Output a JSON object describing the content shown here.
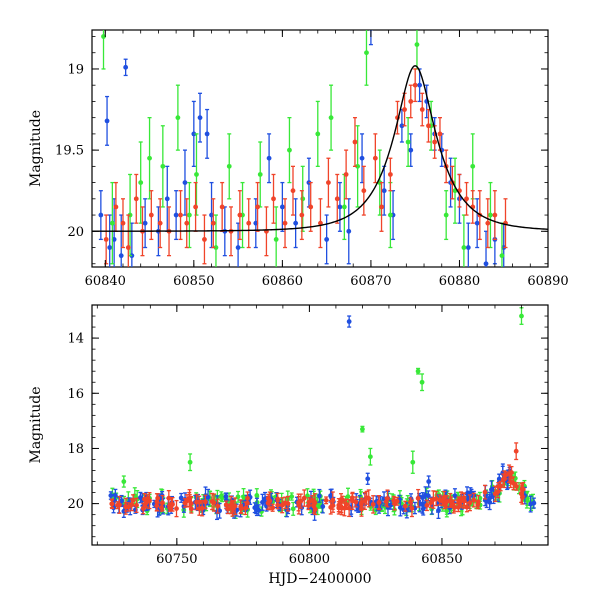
{
  "figure": {
    "xlabel": "HJD−2400000",
    "colors": {
      "blue": "#1f4fe0",
      "green": "#38e838",
      "red": "#f0442a",
      "model": "#000000"
    }
  },
  "chart_data": [
    {
      "type": "scatter",
      "panel": "top",
      "title": "",
      "xlabel": "",
      "ylabel": "Magnitude",
      "xlim": [
        60838.5,
        60890
      ],
      "ylim": [
        20.22,
        18.76
      ],
      "y_inverted": true,
      "xticks": [
        60840,
        60850,
        60860,
        60870,
        60880,
        60890
      ],
      "xtick_labels": [
        "60840",
        "60850",
        "60860",
        "60870",
        "60880",
        "60890"
      ],
      "yticks": [
        19,
        19.5,
        20
      ],
      "ytick_labels": [
        "19",
        "19.5",
        "20"
      ],
      "grid": false,
      "series": [
        {
          "color": "#1f4fe0",
          "points": [
            [
              60839.5,
              19.9,
              0.15
            ],
            [
              60840.2,
              19.32,
              0.15
            ],
            [
              60840.5,
              20.1,
              0.2
            ],
            [
              60841,
              20.05,
              0.25
            ],
            [
              60841.8,
              20.15,
              0.25
            ],
            [
              60842.3,
              18.99,
              0.05
            ],
            [
              60843,
              20.15,
              0.2
            ],
            [
              60844.5,
              19.95,
              0.15
            ],
            [
              60846,
              20.0,
              0.15
            ],
            [
              60847,
              19.8,
              0.2
            ],
            [
              60848,
              19.9,
              0.15
            ],
            [
              60849,
              19.7,
              0.2
            ],
            [
              60850,
              19.4,
              0.2
            ],
            [
              60850.7,
              19.3,
              0.15
            ],
            [
              60851.5,
              19.4,
              0.15
            ],
            [
              60852,
              19.9,
              0.2
            ],
            [
              60853.5,
              20.0,
              0.15
            ],
            [
              60855,
              20.1,
              0.15
            ],
            [
              60857,
              19.95,
              0.15
            ],
            [
              60858.5,
              19.55,
              0.15
            ],
            [
              60860,
              19.85,
              0.15
            ],
            [
              60861.5,
              19.95,
              0.15
            ],
            [
              60863,
              19.7,
              0.15
            ],
            [
              60865,
              20.05,
              0.15
            ],
            [
              60866.5,
              19.85,
              0.15
            ],
            [
              60867.5,
              20.0,
              0.2
            ],
            [
              60869,
              19.55,
              0.15
            ],
            [
              60870,
              18.75,
              0.1
            ],
            [
              60871.5,
              19.75,
              0.15
            ],
            [
              60872.5,
              19.9,
              0.15
            ],
            [
              60873.5,
              19.35,
              0.1
            ],
            [
              60874.5,
              19.5,
              0.1
            ],
            [
              60875.5,
              19.1,
              0.1
            ],
            [
              60876.3,
              19.2,
              0.1
            ],
            [
              60877.2,
              19.4,
              0.1
            ],
            [
              60878,
              19.5,
              0.1
            ],
            [
              60879,
              19.7,
              0.15
            ],
            [
              60880,
              19.8,
              0.15
            ],
            [
              60881,
              20.1,
              0.15
            ],
            [
              60882,
              19.95,
              0.15
            ],
            [
              60883,
              20.2,
              0.2
            ],
            [
              60884,
              20.05,
              0.15
            ],
            [
              60885,
              20.1,
              0.15
            ]
          ]
        },
        {
          "color": "#38e838",
          "points": [
            [
              60839.8,
              18.8,
              0.2
            ],
            [
              60840.8,
              19.95,
              0.25
            ],
            [
              60842.8,
              19.9,
              0.25
            ],
            [
              60844,
              19.7,
              0.25
            ],
            [
              60845,
              19.55,
              0.25
            ],
            [
              60846.5,
              19.6,
              0.25
            ],
            [
              60848.2,
              19.3,
              0.2
            ],
            [
              60849.5,
              19.9,
              0.2
            ],
            [
              60850.3,
              19.65,
              0.25
            ],
            [
              60852.5,
              20.1,
              0.2
            ],
            [
              60854,
              19.6,
              0.2
            ],
            [
              60855.5,
              19.9,
              0.2
            ],
            [
              60857.5,
              19.65,
              0.2
            ],
            [
              60859.3,
              20.05,
              0.2
            ],
            [
              60860.8,
              19.5,
              0.2
            ],
            [
              60862.3,
              19.8,
              0.2
            ],
            [
              60864,
              19.4,
              0.2
            ],
            [
              60865.5,
              19.3,
              0.2
            ],
            [
              60867,
              19.85,
              0.2
            ],
            [
              60868.5,
              19.6,
              0.25
            ],
            [
              60869.5,
              18.9,
              0.2
            ],
            [
              60871,
              19.7,
              0.2
            ],
            [
              60872.2,
              19.9,
              0.2
            ],
            [
              60874.2,
              19.45,
              0.15
            ],
            [
              60875.2,
              18.85,
              0.15
            ],
            [
              60876.8,
              19.35,
              0.15
            ],
            [
              60878.5,
              19.9,
              0.15
            ],
            [
              60879.5,
              19.75,
              0.2
            ],
            [
              60880.5,
              20.1,
              0.2
            ],
            [
              60881.5,
              19.6,
              0.2
            ],
            [
              60883.5,
              19.9,
              0.2
            ],
            [
              60884.8,
              20.15,
              0.2
            ]
          ]
        },
        {
          "color": "#f0442a",
          "points": [
            [
              60840.1,
              20.05,
              0.15
            ],
            [
              60841.2,
              19.85,
              0.15
            ],
            [
              60842,
              19.95,
              0.15
            ],
            [
              60842.6,
              20.1,
              0.2
            ],
            [
              60843.5,
              19.8,
              0.15
            ],
            [
              60844.2,
              20.0,
              0.15
            ],
            [
              60845.2,
              19.9,
              0.15
            ],
            [
              60846.2,
              19.95,
              0.15
            ],
            [
              60847.2,
              20.0,
              0.15
            ],
            [
              60848.5,
              19.9,
              0.15
            ],
            [
              60849.2,
              19.95,
              0.15
            ],
            [
              60850.2,
              19.85,
              0.15
            ],
            [
              60851.2,
              20.05,
              0.15
            ],
            [
              60852.2,
              19.95,
              0.15
            ],
            [
              60853.2,
              19.85,
              0.15
            ],
            [
              60854.2,
              20.0,
              0.15
            ],
            [
              60855.2,
              19.9,
              0.15
            ],
            [
              60856.2,
              19.95,
              0.15
            ],
            [
              60857.2,
              19.85,
              0.15
            ],
            [
              60858.2,
              20.0,
              0.15
            ],
            [
              60859,
              19.8,
              0.15
            ],
            [
              60860.3,
              19.95,
              0.15
            ],
            [
              60861.2,
              19.75,
              0.15
            ],
            [
              60862.2,
              19.9,
              0.15
            ],
            [
              60863.2,
              19.85,
              0.15
            ],
            [
              60864.3,
              19.95,
              0.15
            ],
            [
              60865.2,
              19.7,
              0.15
            ],
            [
              60866.2,
              19.8,
              0.15
            ],
            [
              60867.2,
              19.65,
              0.15
            ],
            [
              60868.2,
              19.45,
              0.15
            ],
            [
              60869.2,
              19.75,
              0.15
            ],
            [
              60870.5,
              19.55,
              0.15
            ],
            [
              60871.2,
              19.85,
              0.15
            ],
            [
              60872.2,
              19.65,
              0.1
            ],
            [
              60873,
              19.3,
              0.1
            ],
            [
              60873.8,
              19.25,
              0.1
            ],
            [
              60874.5,
              19.2,
              0.1
            ],
            [
              60875,
              19.1,
              0.1
            ],
            [
              60875.8,
              19.25,
              0.1
            ],
            [
              60876.5,
              19.35,
              0.1
            ],
            [
              60877.2,
              19.45,
              0.1
            ],
            [
              60877.8,
              19.4,
              0.1
            ],
            [
              60878.5,
              19.6,
              0.1
            ],
            [
              60879.2,
              19.7,
              0.1
            ],
            [
              60880,
              19.75,
              0.1
            ],
            [
              60880.8,
              19.8,
              0.1
            ],
            [
              60881.5,
              19.85,
              0.1
            ],
            [
              60882.3,
              19.9,
              0.15
            ],
            [
              60883.2,
              19.95,
              0.15
            ],
            [
              60884,
              19.9,
              0.15
            ],
            [
              60885.2,
              19.95,
              0.15
            ]
          ]
        }
      ],
      "model_curve": {
        "type": "line",
        "color": "#000000",
        "t0": 60875,
        "peak_magnitude": 18.98,
        "baseline_magnitude": 20.0,
        "tE": 4.5
      }
    },
    {
      "type": "scatter",
      "panel": "bottom",
      "title": "",
      "xlabel": "HJD−2400000",
      "ylabel": "Magnitude",
      "xlim": [
        60718,
        60890
      ],
      "ylim": [
        21.5,
        12.8
      ],
      "y_inverted": true,
      "xticks": [
        60750,
        60800,
        60850
      ],
      "xtick_labels": [
        "60750",
        "60800",
        "60850"
      ],
      "yticks": [
        14,
        16,
        18,
        20
      ],
      "ytick_labels": [
        "14",
        "16",
        "18",
        "20"
      ],
      "grid": false,
      "outliers": [
        {
          "color": "#1f4fe0",
          "x": 60815,
          "y": 13.4,
          "err": 0.2
        },
        {
          "color": "#38e838",
          "x": 60755,
          "y": 18.5,
          "err": 0.3
        },
        {
          "color": "#38e838",
          "x": 60820,
          "y": 17.3,
          "err": 0.1
        },
        {
          "color": "#38e838",
          "x": 60823,
          "y": 18.3,
          "err": 0.3
        },
        {
          "color": "#38e838",
          "x": 60841,
          "y": 15.2,
          "err": 0.1
        },
        {
          "color": "#38e838",
          "x": 60842.5,
          "y": 15.6,
          "err": 0.3
        },
        {
          "color": "#38e838",
          "x": 60839,
          "y": 18.5,
          "err": 0.4
        },
        {
          "color": "#38e838",
          "x": 60880,
          "y": 13.2,
          "err": 0.3
        },
        {
          "color": "#f0442a",
          "x": 60878,
          "y": 18.1,
          "err": 0.3
        },
        {
          "color": "#1f4fe0",
          "x": 60822,
          "y": 19.1,
          "err": 0.2
        },
        {
          "color": "#1f4fe0",
          "x": 60845,
          "y": 19.2,
          "err": 0.2
        },
        {
          "color": "#38e838",
          "x": 60730,
          "y": 19.2,
          "err": 0.2
        }
      ],
      "baseline": {
        "x_range": [
          60725,
          60885
        ],
        "magnitude": 20.0,
        "scatter": 0.3,
        "points_per_series": 150
      },
      "bump": {
        "t0": 60875,
        "peak_magnitude": 19.0,
        "baseline_magnitude": 20.0,
        "tE": 4.5
      }
    }
  ]
}
